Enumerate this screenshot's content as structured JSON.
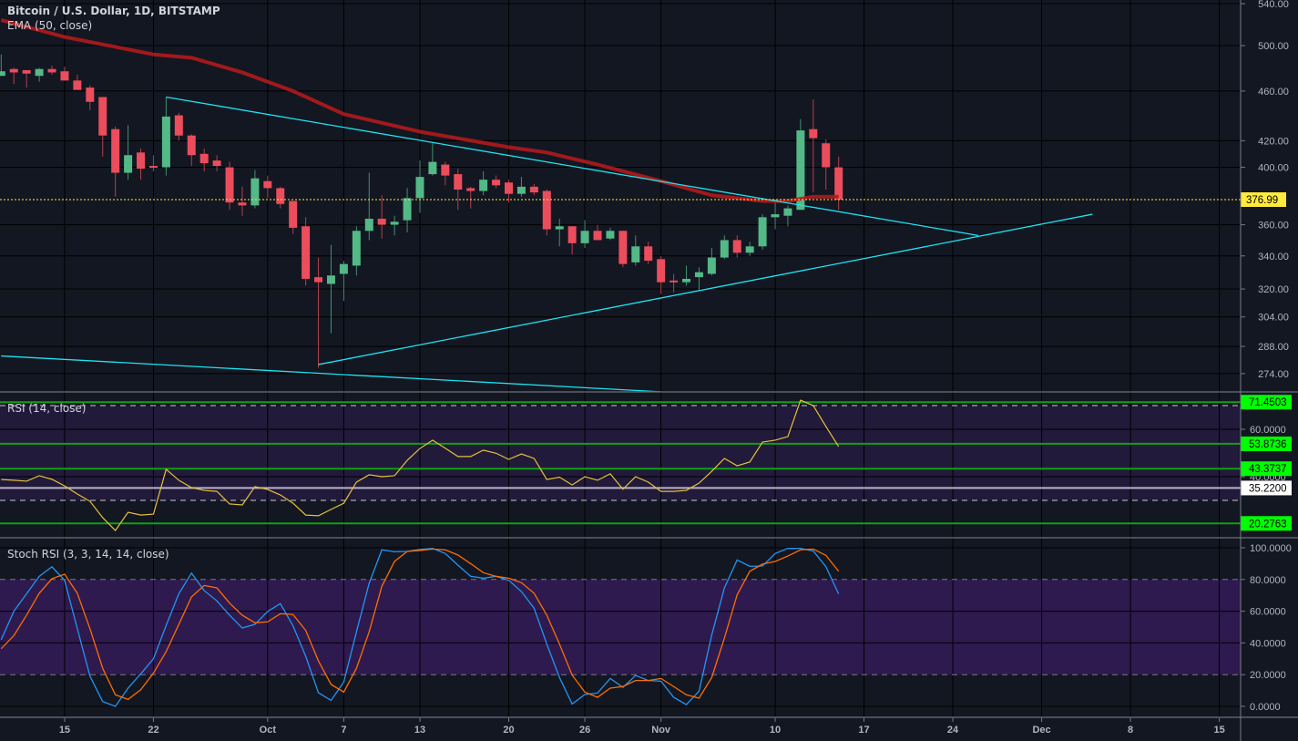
{
  "header": {
    "symbol_title": "Bitcoin / U.S. Dollar, 1D, BITSTAMP",
    "ema_label": "EMA (50, close)",
    "rsi_label": "RSI (14, close)",
    "stoch_label": "Stoch RSI (3, 3, 14, 14, close)"
  },
  "colors": {
    "background": "#131722",
    "up": "#53b987",
    "down": "#eb4d5c",
    "ema": "#b21a1c",
    "trendline": "#1ee3f0",
    "last_price": "#ffeb3b",
    "rsi": "#e6c13a",
    "stoch_k": "#2196f3",
    "stoch_d": "#ff6d00",
    "hline": "#10a010",
    "badge_green": "#00ff00"
  },
  "chart_data": [
    {
      "type": "candlestick",
      "title": "Bitcoin / U.S. Dollar, 1D, BITSTAMP",
      "scale": "log",
      "ylim": [
        265,
        540
      ],
      "price_ticks": [
        "540.00",
        "500.00",
        "460.00",
        "420.00",
        "400.00",
        "360.00",
        "340.00",
        "320.00",
        "304.00",
        "288.00",
        "274.00"
      ],
      "last_price": "376.99",
      "time_ticks": [
        {
          "label": "15",
          "date": "Sep 15"
        },
        {
          "label": "22",
          "date": "Sep 22"
        },
        {
          "label": "Oct",
          "date": "Oct 1"
        },
        {
          "label": "7",
          "date": "Oct 7"
        },
        {
          "label": "13",
          "date": "Oct 13"
        },
        {
          "label": "20",
          "date": "Oct 20"
        },
        {
          "label": "26",
          "date": "Oct 26"
        },
        {
          "label": "Nov",
          "date": "Nov 1"
        },
        {
          "label": "10",
          "date": "Nov 10"
        },
        {
          "label": "17",
          "date": "Nov 17"
        },
        {
          "label": "24",
          "date": "Nov 24"
        },
        {
          "label": "Dec",
          "date": "Dec 1"
        },
        {
          "label": "8",
          "date": "Dec 8"
        },
        {
          "label": "15",
          "date": "Dec 15"
        }
      ],
      "first_date": "Sep 10",
      "candles": [
        [
          473,
          492,
          473,
          477
        ],
        [
          479,
          480,
          466,
          476
        ],
        [
          478,
          478,
          463,
          475
        ],
        [
          473,
          480,
          468,
          479
        ],
        [
          479,
          482,
          474,
          476
        ],
        [
          477,
          481,
          469,
          469
        ],
        [
          469,
          474,
          461,
          461
        ],
        [
          463,
          465,
          444,
          451
        ],
        [
          455,
          455,
          408,
          424
        ],
        [
          429,
          431,
          379,
          396
        ],
        [
          396,
          432,
          391,
          409
        ],
        [
          411,
          414,
          391,
          399
        ],
        [
          401,
          409,
          397,
          400
        ],
        [
          400,
          455,
          394,
          439
        ],
        [
          440,
          442,
          420,
          424
        ],
        [
          424,
          425,
          401,
          409
        ],
        [
          410,
          414,
          397,
          403
        ],
        [
          405,
          409,
          397,
          401
        ],
        [
          400,
          404,
          370,
          375
        ],
        [
          375,
          386,
          366,
          373
        ],
        [
          373,
          398,
          371,
          392
        ],
        [
          390,
          394,
          378,
          385
        ],
        [
          385,
          386,
          371,
          374
        ],
        [
          376,
          376,
          354,
          358
        ],
        [
          359,
          365,
          322,
          326
        ],
        [
          327,
          339,
          277,
          324
        ],
        [
          323,
          347,
          295,
          328
        ],
        [
          329,
          337,
          313,
          335
        ],
        [
          334,
          359,
          328,
          356
        ],
        [
          356,
          396,
          350,
          364
        ],
        [
          364,
          380,
          351,
          360
        ],
        [
          360,
          366,
          353,
          362
        ],
        [
          363,
          385,
          355,
          378
        ],
        [
          378,
          405,
          368,
          393
        ],
        [
          395,
          418,
          394,
          404
        ],
        [
          402,
          404,
          387,
          394
        ],
        [
          395,
          399,
          370,
          384
        ],
        [
          385,
          386,
          371,
          383
        ],
        [
          383,
          397,
          380,
          391
        ],
        [
          391,
          394,
          385,
          387
        ],
        [
          389,
          391,
          375,
          381
        ],
        [
          381,
          393,
          379,
          386
        ],
        [
          386,
          388,
          380,
          382
        ],
        [
          383,
          384,
          353,
          357
        ],
        [
          357,
          364,
          346,
          359
        ],
        [
          359,
          359,
          341,
          348
        ],
        [
          348,
          363,
          345,
          356
        ],
        [
          356,
          360,
          350,
          350
        ],
        [
          351,
          358,
          350,
          356
        ],
        [
          356,
          356,
          333,
          335
        ],
        [
          336,
          353,
          334,
          346
        ],
        [
          346,
          349,
          335,
          337
        ],
        [
          338,
          340,
          317,
          324
        ],
        [
          325,
          329,
          318,
          324
        ],
        [
          324,
          334,
          322,
          326
        ],
        [
          327,
          333,
          319,
          330
        ],
        [
          329,
          345,
          328,
          339
        ],
        [
          339,
          353,
          338,
          350
        ],
        [
          350,
          353,
          339,
          342
        ],
        [
          342,
          349,
          340,
          346
        ],
        [
          346,
          367,
          344,
          365
        ],
        [
          365,
          377,
          357,
          367
        ],
        [
          366,
          373,
          359,
          371
        ],
        [
          370,
          437,
          370,
          428
        ],
        [
          429,
          453,
          382,
          422
        ],
        [
          418,
          421,
          384,
          400
        ],
        [
          400,
          408,
          370,
          377
        ]
      ],
      "ema": {
        "name": "EMA (50, close)",
        "points": [
          [
            "Sep 10",
            524
          ],
          [
            "Sep 15",
            508
          ],
          [
            "Sep 22",
            492
          ],
          [
            "Sep 25",
            489
          ],
          [
            "Sep 29",
            476
          ],
          [
            "Oct 3",
            460
          ],
          [
            "Oct 7",
            441
          ],
          [
            "Oct 13",
            427
          ],
          [
            "Oct 20",
            415
          ],
          [
            "Oct 23",
            411
          ],
          [
            "Oct 27",
            402
          ],
          [
            "Nov 1",
            390
          ],
          [
            "Nov 5",
            380
          ],
          [
            "Nov 9",
            376
          ],
          [
            "Nov 11",
            376
          ],
          [
            "Nov 13",
            379
          ],
          [
            "Nov 15",
            379
          ]
        ]
      },
      "trendlines": [
        {
          "from": [
            "Sep 23",
            455
          ],
          "to": [
            "Nov 26",
            353
          ]
        },
        {
          "from": [
            "Oct 5",
            278.6
          ],
          "to": [
            "Dec 5",
            367
          ]
        },
        {
          "from": [
            "Sep 10",
            283
          ],
          "to": [
            "Nov 1",
            265
          ]
        }
      ]
    },
    {
      "type": "line",
      "title": "RSI (14, close)",
      "ylim": [
        14,
        76
      ],
      "band": [
        30,
        70
      ],
      "axis_labels": [
        "60.0000",
        "40.0000"
      ],
      "hlines": [
        {
          "value": 71.4503,
          "label": "71.4503",
          "color": "green"
        },
        {
          "value": 53.8736,
          "label": "53.8736",
          "color": "green"
        },
        {
          "value": 43.3737,
          "label": "43.3737",
          "color": "green"
        },
        {
          "value": 35.22,
          "label": "35.2200",
          "color": "white"
        },
        {
          "value": 20.2763,
          "label": "20.2763",
          "color": "green"
        }
      ],
      "values": [
        38.8,
        38.5,
        38.1,
        40.4,
        38.9,
        36.1,
        32.7,
        29.6,
        22.7,
        17.3,
        25,
        23.8,
        24.2,
        43.1,
        38.5,
        35.4,
        34.2,
        33.8,
        28.5,
        28.1,
        35.8,
        34.6,
        32.3,
        28.8,
        23.8,
        23.5,
        26.2,
        28.8,
        37.7,
        40.8,
        40,
        40.4,
        46.9,
        51.9,
        55.4,
        52,
        48.5,
        48.5,
        51.2,
        49.9,
        47.3,
        49.6,
        47.7,
        38.8,
        39.8,
        36.5,
        40,
        38.5,
        41.2,
        34.7,
        40,
        37.7,
        33.8,
        33.8,
        34.2,
        37.3,
        42.3,
        47.7,
        44.6,
        46.2,
        54.6,
        55.4,
        56.9,
        72.3,
        70,
        61.2,
        52.7
      ]
    },
    {
      "type": "line",
      "title": "Stoch RSI (3, 3, 14, 14, close)",
      "ylim": [
        -6,
        106
      ],
      "band": [
        20,
        80
      ],
      "axis_labels": [
        "100.0000",
        "80.0000",
        "60.0000",
        "40.0000",
        "20.0000",
        "0.0000"
      ],
      "series": [
        {
          "name": "K",
          "values": [
            42,
            60,
            71,
            82,
            88,
            79.5,
            49,
            19,
            3,
            0,
            11.5,
            20.5,
            30,
            51,
            71,
            84,
            73,
            66.5,
            57.5,
            49.4,
            51.7,
            59.8,
            64.8,
            50.8,
            31.6,
            8.6,
            3.8,
            15.3,
            47,
            77.6,
            98.7,
            97.5,
            97.7,
            99,
            99.6,
            96.4,
            89,
            82,
            80.8,
            82,
            79.5,
            72.4,
            61.9,
            39.3,
            18.2,
            1.5,
            7.5,
            8.4,
            17.6,
            12,
            19.5,
            16.3,
            15.9,
            5.7,
            1.1,
            9.6,
            45,
            74.7,
            92.3,
            88.3,
            88.5,
            96.4,
            99.6,
            99.6,
            98,
            88,
            70.9
          ]
        },
        {
          "name": "D",
          "values": [
            36.4,
            44.6,
            57.5,
            71.3,
            80.5,
            83.3,
            71.3,
            48.9,
            24,
            7.3,
            4.4,
            10.5,
            21,
            34.5,
            51.7,
            69,
            76.2,
            74.7,
            65.1,
            57.5,
            52.7,
            53.3,
            58.4,
            57.9,
            47.9,
            28.7,
            13.8,
            9,
            24,
            47,
            75.7,
            91.4,
            97.7,
            98.3,
            99.2,
            98.7,
            95.4,
            90,
            84.3,
            82,
            80.8,
            78,
            71.3,
            57.5,
            39.3,
            19.7,
            9,
            5.7,
            11.5,
            12.5,
            16.3,
            16.3,
            17.6,
            12.5,
            7.3,
            5.2,
            18.2,
            43.1,
            70.3,
            85.2,
            89.7,
            91.4,
            94.8,
            98.7,
            99.2,
            95.2,
            85.2
          ]
        }
      ]
    }
  ]
}
